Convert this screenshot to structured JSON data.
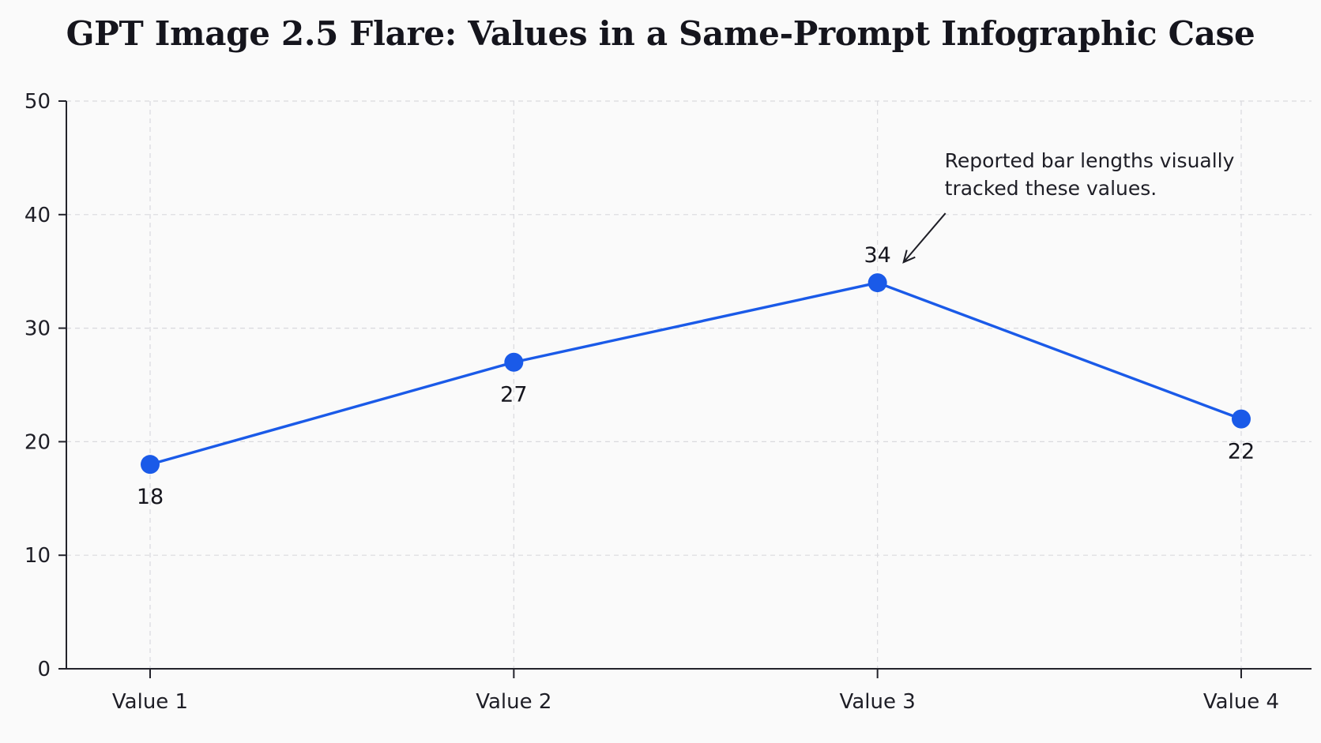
{
  "chart_data": {
    "type": "line",
    "title": "GPT Image 2.5 Flare: Values in a Same-Prompt Infographic Case",
    "xlabel": "",
    "ylabel": "",
    "categories": [
      "Value 1",
      "Value 2",
      "Value 3",
      "Value 4"
    ],
    "series": [
      {
        "values": [
          18,
          27,
          34,
          22
        ],
        "color": "#1a5ae8"
      }
    ],
    "data_labels": [
      "18",
      "27",
      "34",
      "22"
    ],
    "ylim": [
      0,
      50
    ],
    "yticks": [
      0,
      10,
      20,
      30,
      40,
      50
    ],
    "grid": true,
    "annotation": {
      "lines": [
        "Reported bar lengths visually",
        "tracked these values."
      ],
      "target": "Value 3"
    }
  }
}
